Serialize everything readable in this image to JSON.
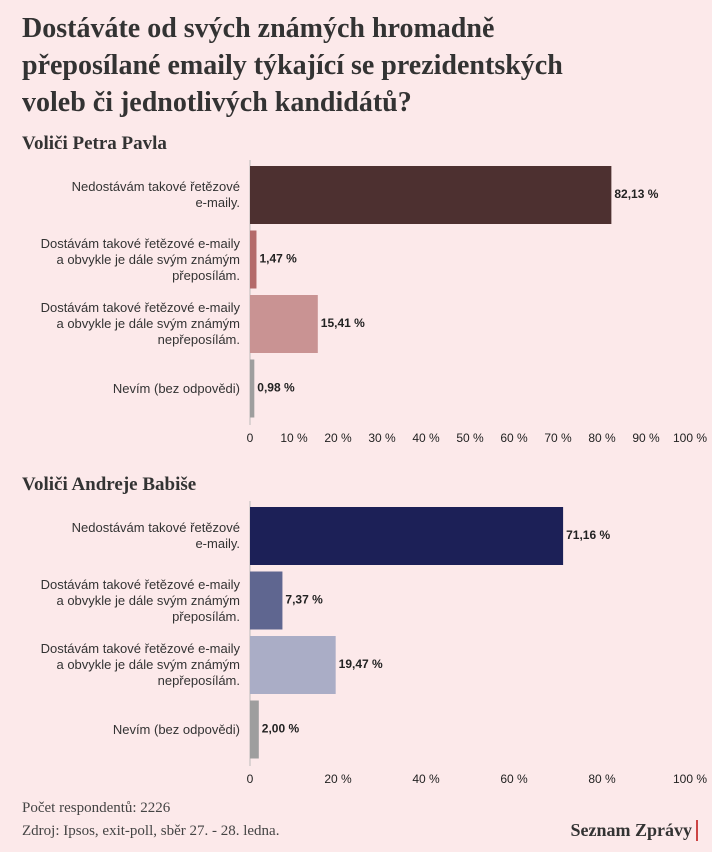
{
  "title": "Dostáváte od svých známých hromadně\npřeposílané emaily týkající se prezidentských\nvoleb či jednotlivých kandidátů?",
  "chart_data": [
    {
      "type": "bar",
      "orientation": "horizontal",
      "subtitle": "Voliči Petra Pavla",
      "categories": [
        "Nedostávám takové řetězové\ne-maily.",
        "Dostávám takové řetězové e-maily\na obvykle je dále svým známým\npřeposílám.",
        "Dostávám takové řetězové e-maily\na obvykle je dále svým známým\nnepřeposílám.",
        "Nevím (bez odpovědi)"
      ],
      "values": [
        82.13,
        1.47,
        15.41,
        0.98
      ],
      "value_labels": [
        "82,13 %",
        "1,47 %",
        "15,41 %",
        "0,98 %"
      ],
      "colors": [
        "#4d3030",
        "#b46a6a",
        "#c99393",
        "#9e9e9e"
      ],
      "xlim": [
        0,
        100
      ],
      "xticks": [
        0,
        {
          "value": 10,
          "label": "10 %"
        },
        {
          "value": 20,
          "label": "20 %"
        },
        {
          "value": 30,
          "label": "30 %"
        },
        {
          "value": 40,
          "label": "40 %"
        },
        {
          "value": 50,
          "label": "50 %"
        },
        {
          "value": 60,
          "label": "60 %"
        },
        {
          "value": 70,
          "label": "70 %"
        },
        {
          "value": 80,
          "label": "80 %"
        },
        {
          "value": 90,
          "label": "90 %"
        },
        {
          "value": 100,
          "label": "100 %"
        }
      ]
    },
    {
      "type": "bar",
      "orientation": "horizontal",
      "subtitle": "Voliči Andreje Babiše",
      "categories": [
        "Nedostávám takové řetězové\ne-maily.",
        "Dostávám takové řetězové e-maily\na obvykle je dále svým známým\npřeposílám.",
        "Dostávám takové řetězové e-maily\na obvykle je dále svým známým\nnepřeposílám.",
        "Nevím (bez odpovědi)"
      ],
      "values": [
        71.16,
        7.37,
        19.47,
        2.0
      ],
      "value_labels": [
        "71,16 %",
        "7,37 %",
        "19,47 %",
        "2,00 %"
      ],
      "colors": [
        "#1c2057",
        "#5f6690",
        "#aaadc6",
        "#9e9e9e"
      ],
      "xlim": [
        0,
        100
      ],
      "xticks": [
        0,
        {
          "value": 20,
          "label": "20 %"
        },
        {
          "value": 40,
          "label": "40 %"
        },
        {
          "value": 60,
          "label": "60 %"
        },
        {
          "value": 80,
          "label": "80 %"
        },
        {
          "value": 100,
          "label": "100 %"
        }
      ]
    }
  ],
  "footer": {
    "respondents": "Počet respondentů: 2226",
    "source": "Zdroj: Ipsos, exit-poll, sběr 27. - 28. ledna.",
    "brand": "Seznam Zprávy"
  }
}
